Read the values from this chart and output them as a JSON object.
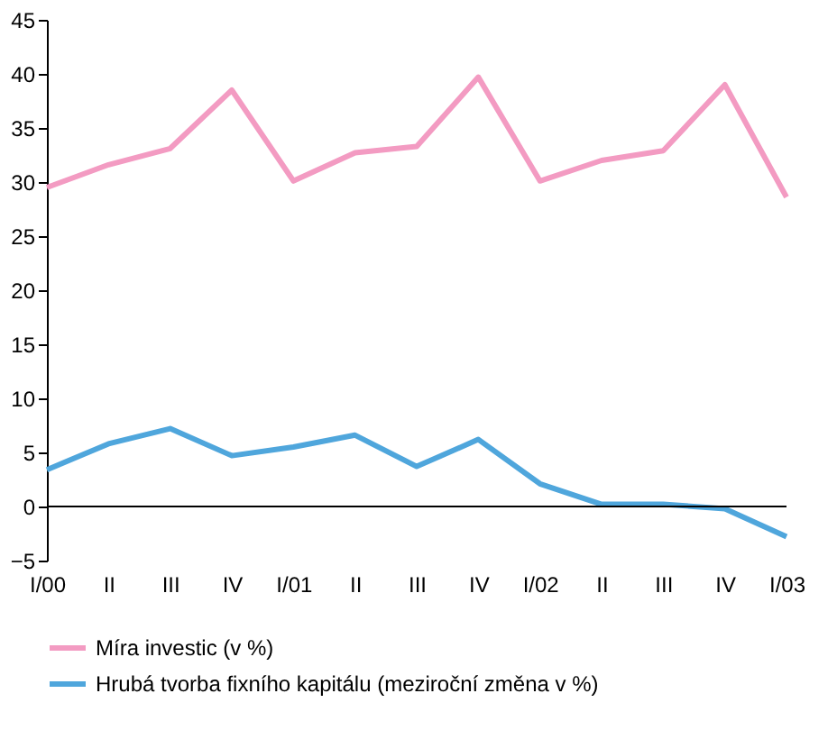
{
  "chart_data": {
    "type": "line",
    "categories": [
      "I/00",
      "II",
      "III",
      "IV",
      "I/01",
      "II",
      "III",
      "IV",
      "I/02",
      "II",
      "III",
      "IV",
      "I/03"
    ],
    "series": [
      {
        "name": "Míra investic (v %)",
        "color": "#f39bc2",
        "values": [
          29.5,
          31.6,
          33.1,
          38.5,
          30.1,
          32.7,
          33.3,
          39.7,
          30.1,
          32.0,
          32.9,
          39.0,
          28.6
        ]
      },
      {
        "name": "Hrubá tvorba fixního kapitálu (meziroční změna v %)",
        "color": "#4fa6dc",
        "values": [
          3.4,
          5.8,
          7.2,
          4.7,
          5.5,
          6.6,
          3.7,
          6.2,
          2.1,
          0.2,
          0.2,
          -0.2,
          -2.8
        ]
      }
    ],
    "ylim": [
      -5,
      45
    ],
    "yticks": [
      -5,
      0,
      5,
      10,
      15,
      20,
      25,
      30,
      35,
      40,
      45
    ],
    "ref_lines": [
      {
        "axis": "y",
        "value": 0,
        "color": "#000000"
      }
    ],
    "grid": false,
    "legend": "bottom",
    "marker": "none",
    "line_style": "solid"
  }
}
